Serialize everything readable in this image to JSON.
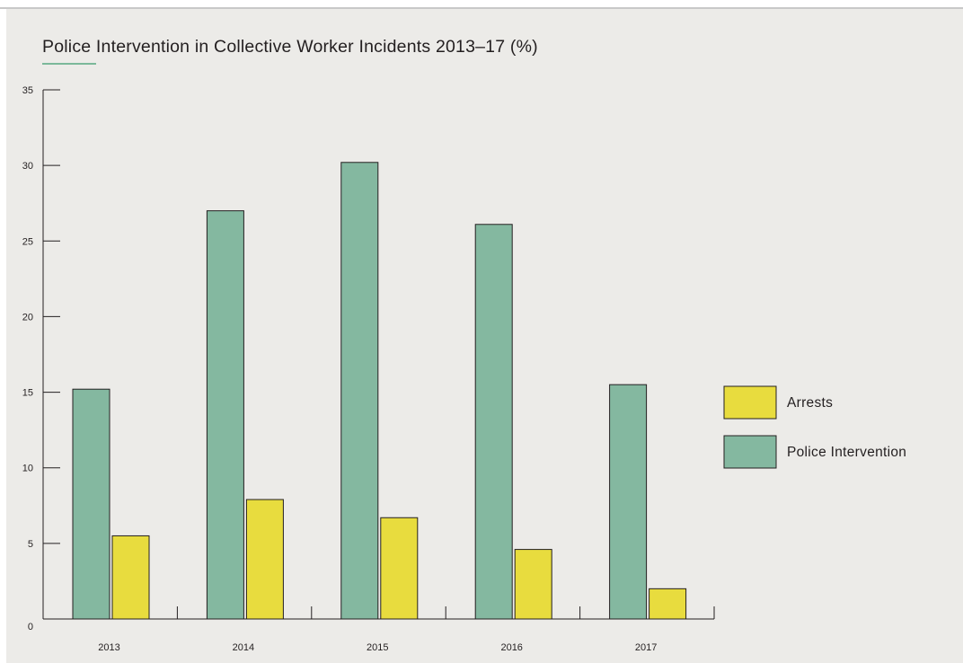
{
  "chart_data": {
    "type": "bar",
    "title": "Police Intervention in Collective Worker Incidents 2013–17 (%)",
    "xlabel": "",
    "ylabel": "",
    "categories": [
      "2013",
      "2014",
      "2015",
      "2016",
      "2017"
    ],
    "series": [
      {
        "name": "Police Intervention",
        "color": "#84b8a0",
        "values": [
          15.2,
          27.0,
          30.2,
          26.1,
          15.5
        ]
      },
      {
        "name": "Arrests",
        "color": "#e8dc3e",
        "values": [
          5.5,
          7.9,
          6.7,
          4.6,
          2.0
        ]
      }
    ],
    "ylim": [
      0,
      35
    ],
    "yticks": [
      0,
      5,
      10,
      15,
      20,
      25,
      30,
      35
    ],
    "legend": {
      "placement": "right",
      "entries": [
        {
          "label": "Arrests",
          "color": "#e8dc3e"
        },
        {
          "label": "Police Intervention",
          "color": "#84b8a0"
        }
      ]
    },
    "grid": false
  }
}
